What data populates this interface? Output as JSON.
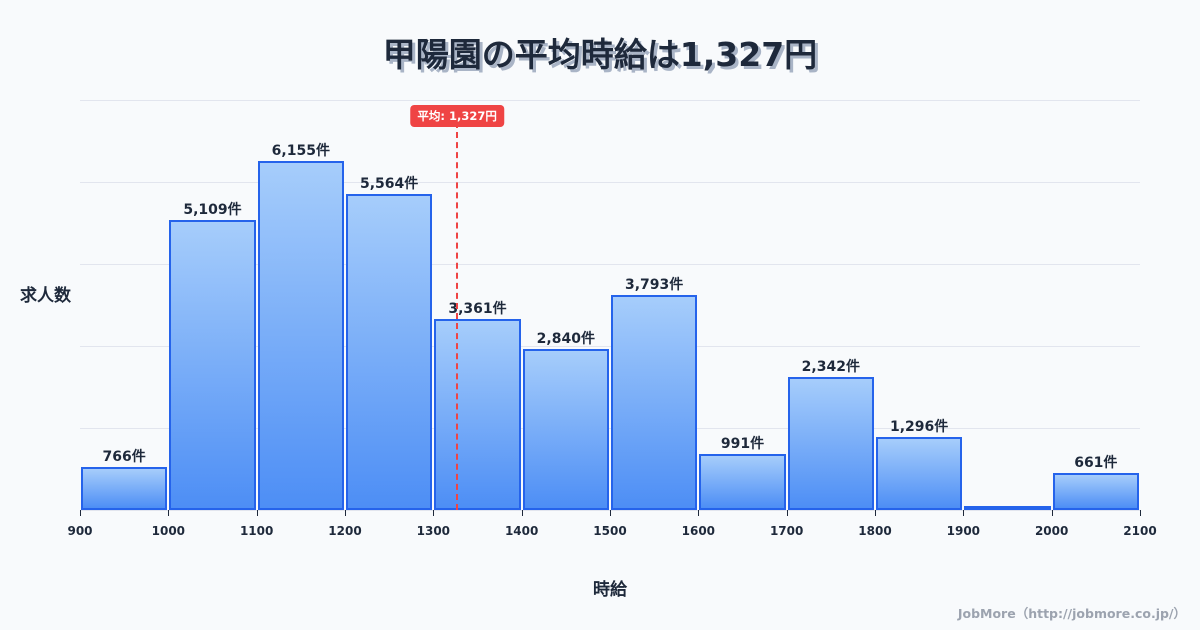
{
  "title": "甲陽園の平均時給は1,327円",
  "axis": {
    "ylabel": "求人数",
    "xlabel": "時給"
  },
  "credit": "JobMore（http://jobmore.co.jp/）",
  "average": {
    "value": 1327,
    "label": "平均: 1,327円",
    "color": "#ef4444"
  },
  "colors": {
    "bar_border": "#2563eb",
    "bar_top": "#a6cdfb",
    "bar_bottom": "#4d8ef5",
    "grid": "#e2e5ee",
    "background": "#f8fafc",
    "text": "#1e293b"
  },
  "chart_data": {
    "type": "bar",
    "title": "甲陽園の平均時給は1,327円",
    "xlabel": "時給",
    "ylabel": "求人数",
    "bin_edges": [
      900,
      1000,
      1100,
      1200,
      1300,
      1400,
      1500,
      1600,
      1700,
      1800,
      1900,
      2000,
      2100
    ],
    "categories": [
      "900-1000",
      "1000-1100",
      "1100-1200",
      "1200-1300",
      "1300-1400",
      "1400-1500",
      "1500-1600",
      "1600-1700",
      "1700-1800",
      "1800-1900",
      "1900-2000",
      "2000-2100"
    ],
    "values": [
      766,
      5109,
      6155,
      5564,
      3361,
      2840,
      3793,
      991,
      2342,
      1296,
      30,
      661
    ],
    "labels": [
      "766件",
      "5,109件",
      "6,155件",
      "5,564件",
      "3,361件",
      "2,840件",
      "3,793件",
      "991件",
      "2,342件",
      "1,296件",
      "",
      "661件"
    ],
    "x_ticks": [
      "900",
      "1000",
      "1100",
      "1200",
      "1300",
      "1400",
      "1500",
      "1600",
      "1700",
      "1800",
      "1900",
      "2000",
      "2100"
    ],
    "xlim": [
      900,
      2100
    ],
    "ylim": [
      0,
      7230
    ],
    "grid": true,
    "y_tick_labels_shown": false,
    "annotations": [
      {
        "type": "vline",
        "x": 1327,
        "label": "平均: 1,327円",
        "style": "dashed",
        "color": "#ef4444"
      }
    ],
    "legend": null
  }
}
